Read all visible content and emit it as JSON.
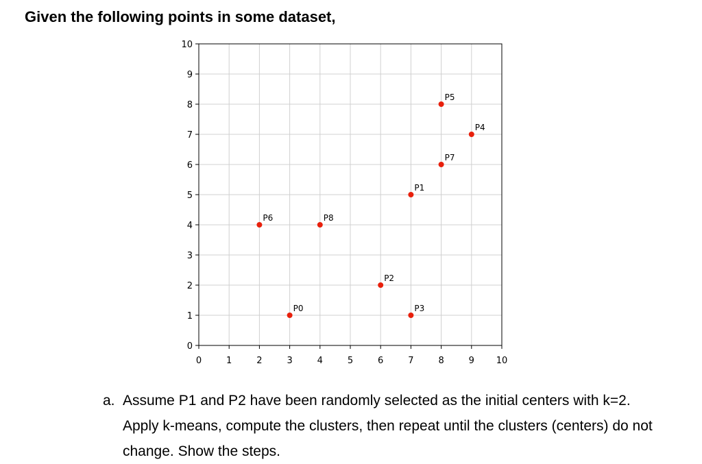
{
  "page": {
    "heading": "Given the following points in some dataset,",
    "question_label": "a.",
    "question_text": "Assume P1 and P2 have been randomly selected as the initial centers with k=2. Apply k-means, compute the clusters, then repeat until the clusters (centers) do not change. Show the steps."
  },
  "colors": {
    "point": "#e8200c",
    "grid": "#d0d0d0",
    "axis": "#000000"
  },
  "chart_data": {
    "type": "scatter",
    "title": "",
    "xlabel": "",
    "ylabel": "",
    "xlim": [
      0,
      10
    ],
    "ylim": [
      0,
      10
    ],
    "xticks": [
      "0",
      "1",
      "2",
      "3",
      "4",
      "5",
      "6",
      "7",
      "8",
      "9",
      "10"
    ],
    "yticks": [
      "0",
      "1",
      "2",
      "3",
      "4",
      "5",
      "6",
      "7",
      "8",
      "9",
      "10"
    ],
    "grid": true,
    "points": [
      {
        "label": "P0",
        "x": 3,
        "y": 1
      },
      {
        "label": "P1",
        "x": 7,
        "y": 5
      },
      {
        "label": "P2",
        "x": 6,
        "y": 2
      },
      {
        "label": "P3",
        "x": 7,
        "y": 1
      },
      {
        "label": "P4",
        "x": 9,
        "y": 7
      },
      {
        "label": "P5",
        "x": 8,
        "y": 8
      },
      {
        "label": "P6",
        "x": 2,
        "y": 4
      },
      {
        "label": "P7",
        "x": 8,
        "y": 6
      },
      {
        "label": "P8",
        "x": 4,
        "y": 4
      }
    ]
  }
}
